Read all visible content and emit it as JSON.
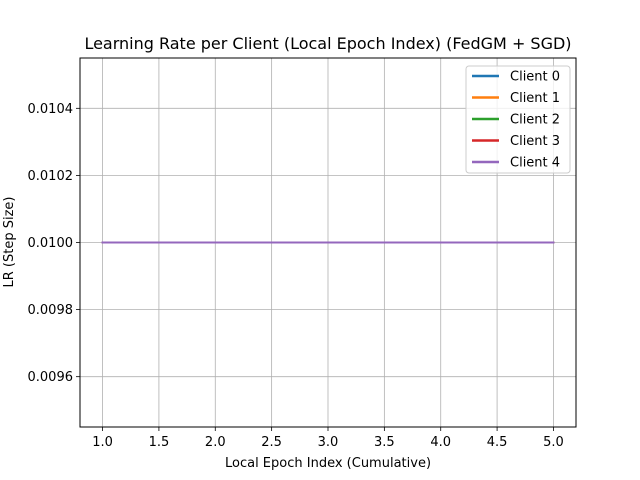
{
  "chart_data": {
    "type": "line",
    "title": "Learning Rate per Client (Local Epoch Index) (FedGM + SGD)",
    "xlabel": "Local Epoch Index (Cumulative)",
    "ylabel": "LR (Step Size)",
    "xlim": [
      0.8,
      5.2
    ],
    "ylim": [
      0.00945,
      0.01055
    ],
    "xticks": [
      1.0,
      1.5,
      2.0,
      2.5,
      3.0,
      3.5,
      4.0,
      4.5,
      5.0
    ],
    "xtick_labels": [
      "1.0",
      "1.5",
      "2.0",
      "2.5",
      "3.0",
      "3.5",
      "4.0",
      "4.5",
      "5.0"
    ],
    "yticks": [
      0.0096,
      0.0098,
      0.01,
      0.0102,
      0.0104
    ],
    "ytick_labels": [
      "0.0096",
      "0.0098",
      "0.0100",
      "0.0102",
      "0.0104"
    ],
    "grid": true,
    "legend_position": "top-right",
    "x": [
      1,
      2,
      3,
      4,
      5
    ],
    "series": [
      {
        "name": "Client 0",
        "color": "#1f77b4",
        "values": [
          0.01,
          0.01,
          0.01,
          0.01,
          0.01
        ]
      },
      {
        "name": "Client 1",
        "color": "#ff7f0e",
        "values": [
          0.01,
          0.01,
          0.01,
          0.01,
          0.01
        ]
      },
      {
        "name": "Client 2",
        "color": "#2ca02c",
        "values": [
          0.01,
          0.01,
          0.01,
          0.01,
          0.01
        ]
      },
      {
        "name": "Client 3",
        "color": "#d62728",
        "values": [
          0.01,
          0.01,
          0.01,
          0.01,
          0.01
        ]
      },
      {
        "name": "Client 4",
        "color": "#9467bd",
        "values": [
          0.01,
          0.01,
          0.01,
          0.01,
          0.01
        ]
      }
    ]
  }
}
